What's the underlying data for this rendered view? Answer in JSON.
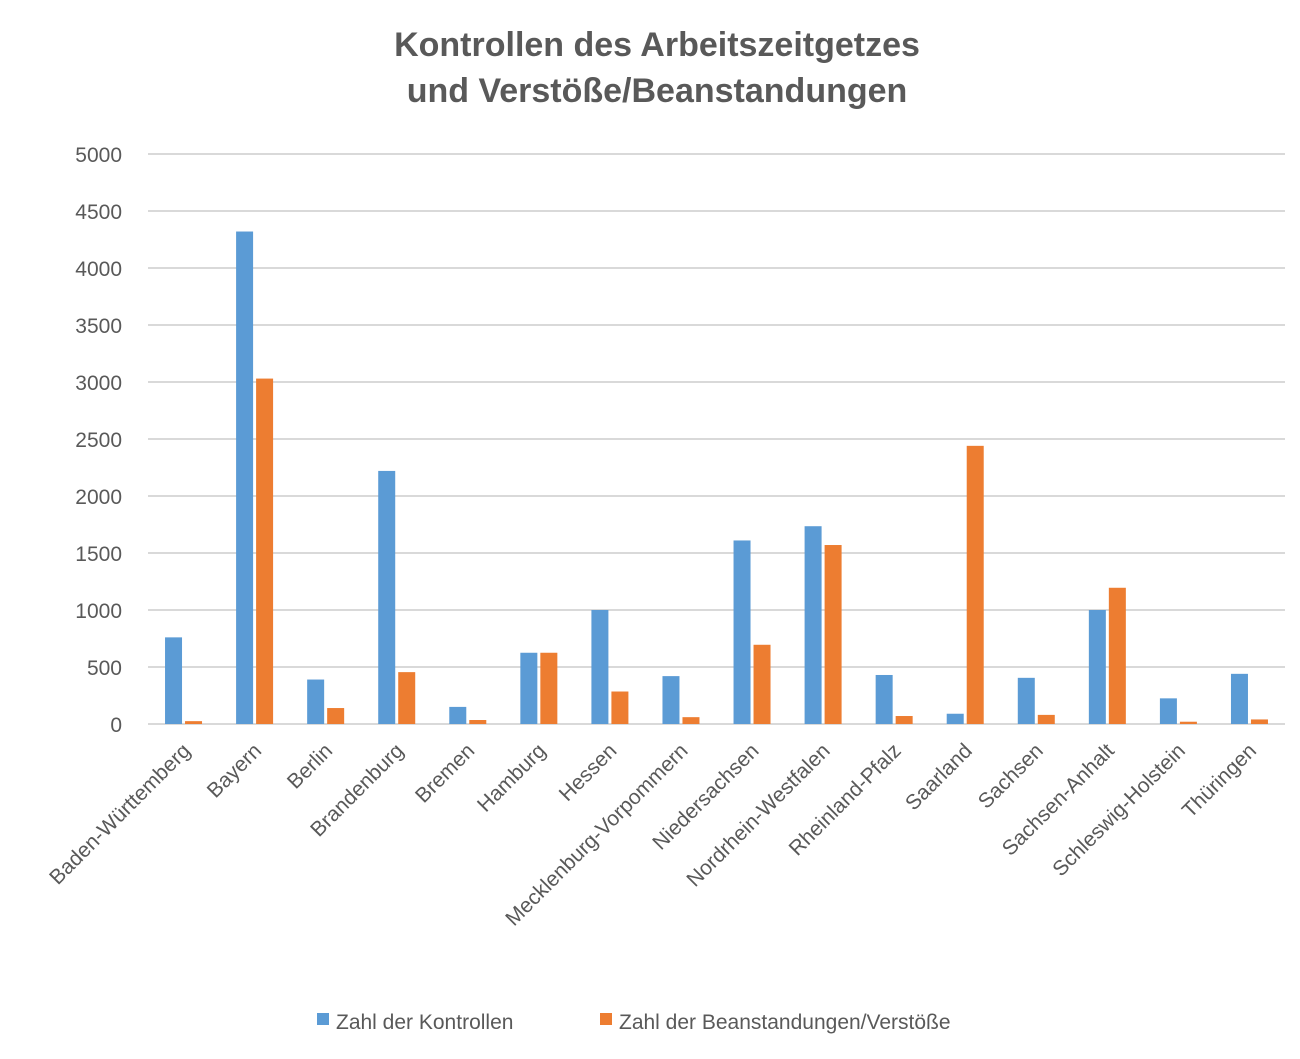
{
  "chart_data": {
    "type": "bar",
    "title": "Kontrollen des Arbeitszeitgetzes",
    "subtitle": "und Verstöße/Beanstandungen",
    "xlabel": "",
    "ylabel": "",
    "ylim": [
      0,
      5000
    ],
    "yticks": [
      0,
      500,
      1000,
      1500,
      2000,
      2500,
      3000,
      3500,
      4000,
      4500,
      5000
    ],
    "grid": true,
    "legend_position": "bottom",
    "categories": [
      "Baden-Württemberg",
      "Bayern",
      "Berlin",
      "Brandenburg",
      "Bremen",
      "Hamburg",
      "Hessen",
      "Mecklenburg-Vorpommern",
      "Niedersachsen",
      "Nordrhein-Westfalen",
      "Rheinland-Pfalz",
      "Saarland",
      "Sachsen",
      "Sachsen-Anhalt",
      "Schleswig-Holstein",
      "Thüringen"
    ],
    "series": [
      {
        "name": "Zahl der Kontrollen",
        "color": "#5B9BD5",
        "values": [
          760,
          4320,
          390,
          2220,
          150,
          625,
          1000,
          420,
          1610,
          1735,
          430,
          90,
          405,
          1000,
          225,
          440
        ]
      },
      {
        "name": "Zahl der Beanstandungen/Verstöße",
        "color": "#ED7D31",
        "values": [
          25,
          3030,
          140,
          455,
          35,
          625,
          285,
          60,
          695,
          1570,
          70,
          2440,
          80,
          1195,
          20,
          40
        ]
      }
    ]
  }
}
